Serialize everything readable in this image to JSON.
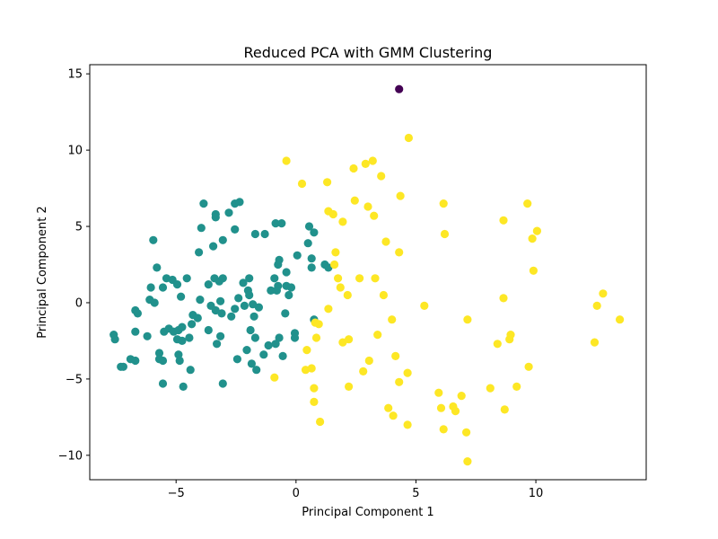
{
  "chart_data": {
    "type": "scatter",
    "title": "Reduced PCA with GMM Clustering",
    "xlabel": "Principal Component 1",
    "ylabel": "Principal Component 2",
    "xlim": [
      -8.6,
      14.6
    ],
    "ylim": [
      -11.6,
      15.6
    ],
    "xticks": [
      -5,
      0,
      5,
      10
    ],
    "yticks": [
      -10,
      -5,
      0,
      5,
      10,
      15
    ],
    "xtick_labels": [
      "−5",
      "0",
      "5",
      "10"
    ],
    "ytick_labels": [
      "−10",
      "−5",
      "0",
      "5",
      "10",
      "15"
    ],
    "grid": false,
    "legend": "none",
    "series": [
      {
        "color": "#440154",
        "points": [
          [
            4.3,
            14.0
          ]
        ]
      },
      {
        "color": "#21918c",
        "points": [
          [
            -7.6,
            -2.1
          ],
          [
            -7.55,
            -2.4
          ],
          [
            -7.3,
            -4.2
          ],
          [
            -7.2,
            -4.2
          ],
          [
            -6.9,
            -3.7
          ],
          [
            -6.7,
            -3.8
          ],
          [
            -6.7,
            -1.9
          ],
          [
            -6.7,
            -0.5
          ],
          [
            -6.6,
            -0.7
          ],
          [
            -6.2,
            -2.2
          ],
          [
            -6.1,
            0.2
          ],
          [
            -6.05,
            1.0
          ],
          [
            -5.95,
            4.1
          ],
          [
            -5.9,
            0.0
          ],
          [
            -5.8,
            2.3
          ],
          [
            -5.7,
            -3.3
          ],
          [
            -5.7,
            -3.7
          ],
          [
            -5.55,
            -5.3
          ],
          [
            -5.55,
            -3.8
          ],
          [
            -5.55,
            1.0
          ],
          [
            -5.5,
            -1.9
          ],
          [
            -5.4,
            1.6
          ],
          [
            -5.3,
            -1.7
          ],
          [
            -5.15,
            1.5
          ],
          [
            -5.1,
            -1.9
          ],
          [
            -4.95,
            1.2
          ],
          [
            -4.95,
            -2.4
          ],
          [
            -4.9,
            -1.8
          ],
          [
            -4.9,
            -3.4
          ],
          [
            -4.85,
            -3.8
          ],
          [
            -4.8,
            0.4
          ],
          [
            -4.75,
            -1.6
          ],
          [
            -4.75,
            -2.5
          ],
          [
            -4.7,
            -5.5
          ],
          [
            -4.55,
            1.6
          ],
          [
            -4.45,
            -2.3
          ],
          [
            -4.4,
            -4.4
          ],
          [
            -4.35,
            -1.4
          ],
          [
            -4.3,
            -0.8
          ],
          [
            -4.1,
            -1.0
          ],
          [
            -4.0,
            0.2
          ],
          [
            -4.05,
            3.3
          ],
          [
            -3.95,
            4.9
          ],
          [
            -3.85,
            6.5
          ],
          [
            -3.65,
            -1.8
          ],
          [
            -3.65,
            1.2
          ],
          [
            -3.55,
            -0.2
          ],
          [
            -3.45,
            3.7
          ],
          [
            -3.4,
            1.6
          ],
          [
            -3.35,
            -0.5
          ],
          [
            -3.35,
            5.8
          ],
          [
            -3.35,
            5.6
          ],
          [
            -3.3,
            -2.7
          ],
          [
            -3.2,
            1.4
          ],
          [
            -3.15,
            -2.2
          ],
          [
            -3.1,
            -0.7
          ],
          [
            -3.15,
            0.1
          ],
          [
            -3.05,
            1.6
          ],
          [
            -3.05,
            4.1
          ],
          [
            -3.05,
            -5.3
          ],
          [
            -2.8,
            5.9
          ],
          [
            -2.7,
            -0.9
          ],
          [
            -2.55,
            6.5
          ],
          [
            -2.55,
            4.8
          ],
          [
            -2.55,
            -0.4
          ],
          [
            -2.45,
            -3.7
          ],
          [
            -2.4,
            0.3
          ],
          [
            -2.35,
            6.6
          ],
          [
            -2.2,
            1.3
          ],
          [
            -2.15,
            -0.2
          ],
          [
            -2.05,
            -3.1
          ],
          [
            -2.0,
            0.8
          ],
          [
            -1.95,
            0.5
          ],
          [
            -1.95,
            1.6
          ],
          [
            -1.9,
            -1.8
          ],
          [
            -1.85,
            -4.0
          ],
          [
            -1.8,
            -0.1
          ],
          [
            -1.75,
            -0.9
          ],
          [
            -1.7,
            -2.3
          ],
          [
            -1.7,
            4.5
          ],
          [
            -1.65,
            -4.4
          ],
          [
            -1.55,
            -0.3
          ],
          [
            -1.35,
            -3.4
          ],
          [
            -1.3,
            4.5
          ],
          [
            -1.15,
            -2.8
          ],
          [
            -1.05,
            0.8
          ],
          [
            -0.9,
            1.6
          ],
          [
            -0.85,
            5.2
          ],
          [
            -0.85,
            -2.7
          ],
          [
            -0.8,
            0.8
          ],
          [
            -0.75,
            1.1
          ],
          [
            -0.75,
            2.5
          ],
          [
            -0.7,
            -2.3
          ],
          [
            -0.7,
            2.8
          ],
          [
            -0.6,
            5.2
          ],
          [
            -0.55,
            -3.5
          ],
          [
            -0.45,
            -0.7
          ],
          [
            -0.4,
            1.1
          ],
          [
            -0.4,
            2.0
          ],
          [
            -0.3,
            0.5
          ],
          [
            -0.2,
            1.0
          ],
          [
            -0.05,
            -2.0
          ],
          [
            -0.05,
            -2.3
          ],
          [
            0.05,
            3.1
          ],
          [
            0.5,
            3.9
          ],
          [
            0.55,
            5.0
          ],
          [
            0.65,
            2.3
          ],
          [
            0.65,
            2.9
          ],
          [
            0.75,
            4.6
          ],
          [
            0.75,
            -1.1
          ],
          [
            1.2,
            2.5
          ],
          [
            1.35,
            2.3
          ]
        ]
      },
      {
        "color": "#fde725",
        "points": [
          [
            -0.9,
            -4.9
          ],
          [
            -0.4,
            9.3
          ],
          [
            0.25,
            7.8
          ],
          [
            0.4,
            -4.4
          ],
          [
            0.45,
            -3.1
          ],
          [
            0.65,
            -4.3
          ],
          [
            0.75,
            -5.6
          ],
          [
            0.75,
            -6.5
          ],
          [
            0.8,
            -1.3
          ],
          [
            0.85,
            -2.3
          ],
          [
            0.95,
            -1.4
          ],
          [
            1.0,
            -7.8
          ],
          [
            1.3,
            7.9
          ],
          [
            1.35,
            -0.4
          ],
          [
            1.35,
            6.0
          ],
          [
            1.55,
            5.8
          ],
          [
            1.6,
            2.5
          ],
          [
            1.65,
            3.3
          ],
          [
            1.75,
            1.6
          ],
          [
            1.85,
            1.0
          ],
          [
            1.95,
            -2.6
          ],
          [
            1.95,
            5.3
          ],
          [
            2.15,
            0.5
          ],
          [
            2.2,
            -2.4
          ],
          [
            2.2,
            -5.5
          ],
          [
            2.4,
            8.8
          ],
          [
            2.45,
            6.7
          ],
          [
            2.65,
            1.6
          ],
          [
            2.8,
            -4.5
          ],
          [
            2.9,
            9.1
          ],
          [
            3.0,
            6.3
          ],
          [
            3.05,
            -3.8
          ],
          [
            3.2,
            9.3
          ],
          [
            3.25,
            5.7
          ],
          [
            3.3,
            1.6
          ],
          [
            3.4,
            -2.1
          ],
          [
            3.55,
            8.3
          ],
          [
            3.65,
            0.5
          ],
          [
            3.75,
            4.0
          ],
          [
            3.85,
            -6.9
          ],
          [
            4.0,
            -1.1
          ],
          [
            4.05,
            -7.4
          ],
          [
            4.15,
            -3.5
          ],
          [
            4.3,
            -5.2
          ],
          [
            4.3,
            3.3
          ],
          [
            4.35,
            7.0
          ],
          [
            4.65,
            -8.0
          ],
          [
            4.65,
            -4.6
          ],
          [
            4.7,
            10.8
          ],
          [
            5.35,
            -0.2
          ],
          [
            5.95,
            -5.9
          ],
          [
            6.05,
            -6.9
          ],
          [
            6.15,
            -8.3
          ],
          [
            6.15,
            6.5
          ],
          [
            6.2,
            4.5
          ],
          [
            6.55,
            -6.8
          ],
          [
            6.65,
            -7.1
          ],
          [
            6.9,
            -6.1
          ],
          [
            7.1,
            -8.5
          ],
          [
            7.15,
            -1.1
          ],
          [
            7.15,
            -10.4
          ],
          [
            8.1,
            -5.6
          ],
          [
            8.4,
            -2.7
          ],
          [
            8.65,
            5.4
          ],
          [
            8.65,
            0.3
          ],
          [
            8.7,
            -7.0
          ],
          [
            8.9,
            -2.4
          ],
          [
            8.95,
            -2.1
          ],
          [
            9.2,
            -5.5
          ],
          [
            9.65,
            6.5
          ],
          [
            9.7,
            -4.2
          ],
          [
            9.85,
            4.2
          ],
          [
            9.9,
            2.1
          ],
          [
            10.05,
            4.7
          ],
          [
            12.45,
            -2.6
          ],
          [
            12.55,
            -0.2
          ],
          [
            12.8,
            0.6
          ],
          [
            13.5,
            -1.1
          ]
        ]
      }
    ]
  }
}
